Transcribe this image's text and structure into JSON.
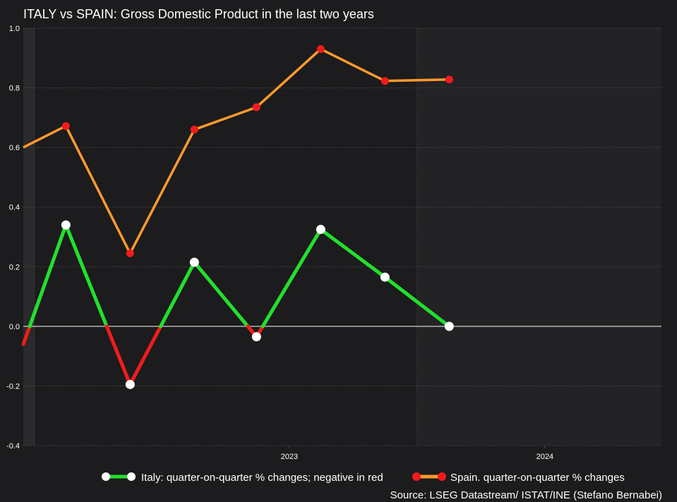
{
  "chart_data": {
    "type": "line",
    "title": "ITALY vs SPAIN: Gross Domestic Product in the last two years",
    "ylim": [
      -0.4,
      1.0
    ],
    "y_ticks": [
      "1.0",
      "0.8",
      "0.6",
      "0.4",
      "0.2",
      "0.0",
      "-0.2",
      "-0.4"
    ],
    "y_tick_values": [
      1.0,
      0.8,
      0.6,
      0.4,
      0.2,
      0.0,
      -0.2,
      -0.4
    ],
    "x_ticks": [
      {
        "label": "2023",
        "x": "2023-07-01"
      },
      {
        "label": "2024",
        "x": "2024-07-01"
      }
    ],
    "x_range": [
      "2022-06-15",
      "2024-12-15"
    ],
    "year_bands": [
      {
        "start": "2022-06-15",
        "end": "2022-07-01",
        "shade": "light"
      },
      {
        "start": "2022-07-01",
        "end": "2023-12-31",
        "shade": "dark"
      },
      {
        "start": "2023-12-31",
        "end": "2024-12-15",
        "shade": "mid"
      }
    ],
    "grid": true,
    "zero_line": true,
    "legend_position": "bottom",
    "series": [
      {
        "name": "Italy: quarter-on-quarter % changes; negative in red",
        "color_positive": "#22e02c",
        "color_negative": "#ef1c1c",
        "marker_color": "#ffffff",
        "points": [
          {
            "x": "2022-06-15",
            "y": -0.06
          },
          {
            "x": "2022-08-15",
            "y": 0.34
          },
          {
            "x": "2022-11-15",
            "y": -0.195
          },
          {
            "x": "2023-02-15",
            "y": 0.215
          },
          {
            "x": "2023-05-15",
            "y": -0.035
          },
          {
            "x": "2023-08-15",
            "y": 0.325
          },
          {
            "x": "2023-11-15",
            "y": 0.165
          },
          {
            "x": "2024-02-15",
            "y": 0.0
          }
        ]
      },
      {
        "name": "Spain. quarter-on-quarter % changes",
        "color": "#ff9a2e",
        "marker_color": "#ef1c1c",
        "points": [
          {
            "x": "2022-06-15",
            "y": 0.6
          },
          {
            "x": "2022-08-15",
            "y": 0.672
          },
          {
            "x": "2022-11-15",
            "y": 0.245
          },
          {
            "x": "2023-02-15",
            "y": 0.66
          },
          {
            "x": "2023-05-15",
            "y": 0.735
          },
          {
            "x": "2023-08-15",
            "y": 0.93
          },
          {
            "x": "2023-11-15",
            "y": 0.823
          },
          {
            "x": "2024-02-15",
            "y": 0.828
          }
        ]
      }
    ],
    "source": "Source: LSEG Datastream/ ISTAT/INE (Stefano Bernabei)"
  },
  "colors": {
    "background": "#1c1b1d",
    "band_light": "#2a292b",
    "band_dark": "#1c1b1d",
    "band_mid": "#232225",
    "grid": "#4a4a4c",
    "zero_line": "#ffffff"
  }
}
